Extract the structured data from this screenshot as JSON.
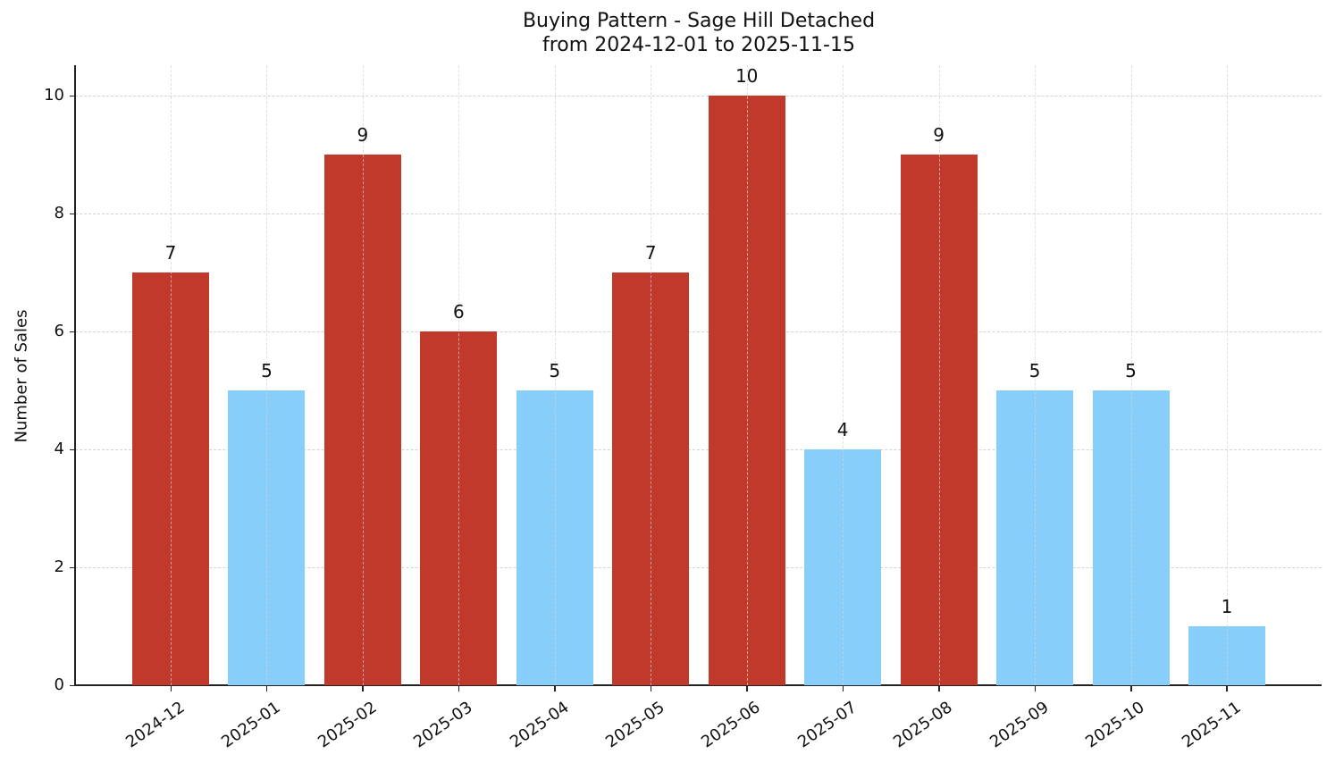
{
  "chart_data": {
    "type": "bar",
    "title": "Buying Pattern - Sage Hill Detached",
    "subtitle": "from 2024-12-01 to 2025-11-15",
    "xlabel": "",
    "ylabel": "Number of Sales",
    "ylim": [
      0,
      10.5
    ],
    "yticks": [
      "0",
      "2",
      "4",
      "6",
      "8",
      "10"
    ],
    "grid": true,
    "legend": null,
    "categories": [
      "2024-12",
      "2025-01",
      "2025-02",
      "2025-03",
      "2025-04",
      "2025-05",
      "2025-06",
      "2025-07",
      "2025-08",
      "2025-09",
      "2025-10",
      "2025-11"
    ],
    "values": [
      7,
      5,
      9,
      6,
      5,
      7,
      10,
      4,
      9,
      5,
      5,
      1
    ],
    "bar_colors": [
      "#c0392b",
      "#87cefa",
      "#c0392b",
      "#c0392b",
      "#87cefa",
      "#c0392b",
      "#c0392b",
      "#87cefa",
      "#c0392b",
      "#87cefa",
      "#87cefa",
      "#87cefa"
    ],
    "data_labels": [
      "7",
      "5",
      "9",
      "6",
      "5",
      "7",
      "10",
      "4",
      "9",
      "5",
      "5",
      "1"
    ],
    "colors": {
      "high": "#c0392b",
      "low": "#87cefa"
    }
  }
}
